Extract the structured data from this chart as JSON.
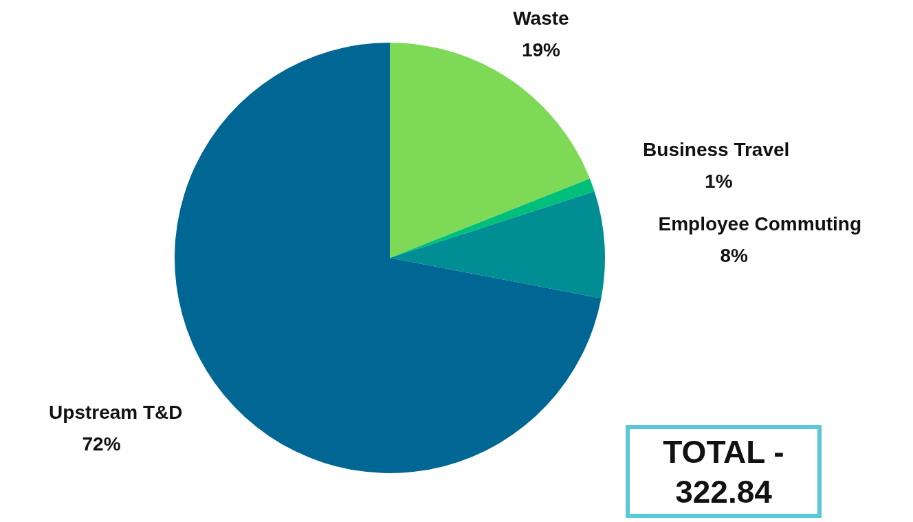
{
  "chart_data": {
    "type": "pie",
    "categories": [
      "Waste",
      "Business Travel",
      "Employee Commuting",
      "Upstream T&D"
    ],
    "values": [
      19,
      1,
      8,
      72
    ],
    "colors": [
      "#7ed957",
      "#00bf7a",
      "#008e94",
      "#006794"
    ],
    "value_labels": [
      "19%",
      "1%",
      "8%",
      "72%"
    ],
    "legend": false,
    "annotations": [
      "TOTAL - 322.84"
    ]
  }
}
